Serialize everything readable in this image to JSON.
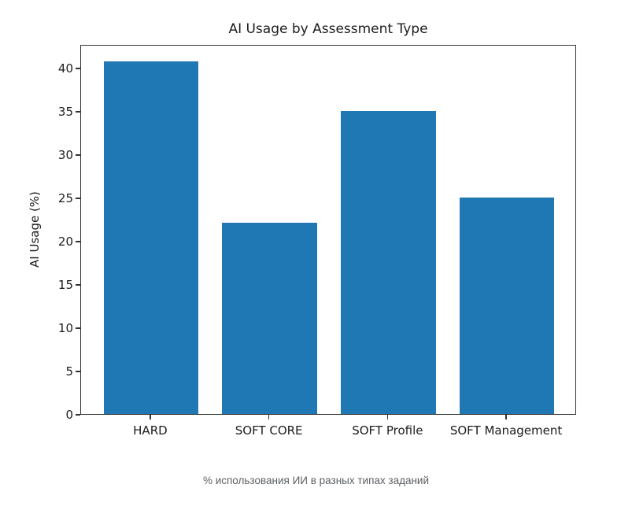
{
  "chart_data": {
    "type": "bar",
    "title": "AI Usage by Assessment Type",
    "xlabel": "",
    "ylabel": "AI Usage (%)",
    "categories": [
      "HARD",
      "SOFT CORE",
      "SOFT Profile",
      "SOFT Management"
    ],
    "values": [
      40.7,
      22.1,
      35.0,
      25.0
    ],
    "y_ticks": [
      0,
      5,
      10,
      15,
      20,
      25,
      30,
      35,
      40
    ],
    "ylim": [
      0,
      42.74
    ],
    "x_range": [
      -0.59,
      3.59
    ],
    "bar_width": 0.8,
    "bar_color": "#1f77b4",
    "grid": false,
    "legend": false
  },
  "caption": {
    "text": "% использования ИИ в разных типах заданий"
  },
  "colors": {
    "bar": "#1f77b4",
    "axis": "#333333",
    "chart_text": "#1c1c1c",
    "caption_text": "#5b5f63",
    "background": "#ffffff"
  }
}
